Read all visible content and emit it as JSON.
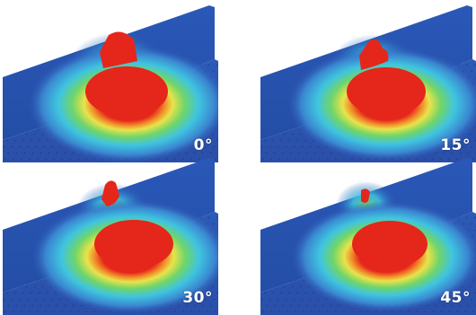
{
  "panels": [
    {
      "angle_label": "0°",
      "scatter_lobe_level": 1.0
    },
    {
      "angle_label": "15°",
      "scatter_lobe_level": 0.8
    },
    {
      "angle_label": "30°",
      "scatter_lobe_level": 0.5
    },
    {
      "angle_label": "45°",
      "scatter_lobe_level": 0.25
    }
  ],
  "colors": {
    "background": "#ffffff",
    "field_low": "#2f56b3",
    "field_mid_cyan": "#3fc4e0",
    "field_mid_green": "#6fd56a",
    "field_mid_yellow": "#e9e34a",
    "field_high": "#e5261b",
    "wall": "#2a58b8",
    "dots": "#1a2f6b"
  }
}
